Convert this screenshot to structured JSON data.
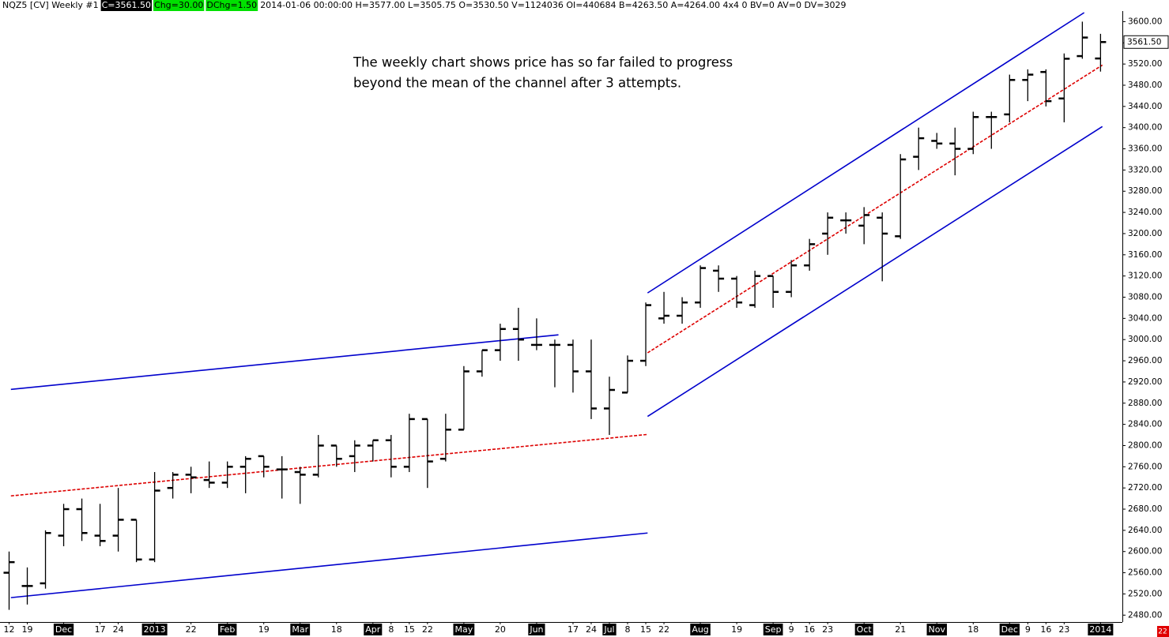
{
  "chart_data": {
    "type": "ohlc",
    "header": {
      "symbol": "NQZ5 [CV]  Weekly  #1",
      "close": "C=3561.50",
      "change": "Chg=30.00",
      "dchange": "DChg=1.50",
      "details": "2014-01-06 00:00:00 H=3577.00 L=3505.75 O=3530.50 V=1124036 OI=440684 B=4263.50 A=4264.00 4x4 0 BV=0 AV=0 DV=3029"
    },
    "annotation": [
      "The weekly chart shows price has so far failed to progress",
      "beyond the mean of the channel after 3 attempts."
    ],
    "last_price_label": {
      "value": 3561.5,
      "label": "3561.50"
    },
    "corner_label": "22",
    "categories": [
      "12",
      "19",
      null,
      "Dec",
      null,
      "17",
      "24",
      null,
      "2013",
      null,
      "22",
      null,
      "Feb",
      null,
      "19",
      null,
      "Mar",
      null,
      "18",
      null,
      "Apr",
      "8",
      "15",
      "22",
      null,
      "May",
      null,
      "20",
      null,
      "Jun",
      null,
      "17",
      "24",
      "Jul",
      "8",
      "15",
      "22",
      null,
      "Aug",
      null,
      "19",
      null,
      "Sep",
      "9",
      "16",
      "23",
      null,
      "Oct",
      null,
      "21",
      null,
      "Nov",
      null,
      "18",
      null,
      "Dec",
      "9",
      "16",
      "23",
      null,
      "2014"
    ],
    "series": [
      {
        "name": "NQZ5",
        "color": "#000000",
        "open": [
          2560,
          2535,
          2540,
          2630,
          2680,
          2630,
          2630,
          2660,
          2585,
          2720,
          2745,
          2735,
          2730,
          2760,
          2780,
          2755,
          2750,
          2745,
          2800,
          2780,
          2800,
          2810,
          2760,
          2850,
          2775,
          2830,
          2940,
          2980,
          3020,
          2990,
          2990,
          2990,
          2940,
          2870,
          2900,
          2960,
          3040,
          3045,
          3070,
          3130,
          3115,
          3065,
          3120,
          3090,
          3140,
          3200,
          3225,
          3215,
          3230,
          3195,
          3345,
          3375,
          3370,
          3360,
          3420,
          3425,
          3490,
          3505,
          3455,
          3535,
          3530.5
        ],
        "high": [
          2600,
          2570,
          2640,
          2690,
          2700,
          2690,
          2720,
          2660,
          2750,
          2750,
          2760,
          2770,
          2770,
          2780,
          2780,
          2780,
          2760,
          2820,
          2800,
          2810,
          2810,
          2820,
          2860,
          2850,
          2860,
          2950,
          2980,
          3030,
          3060,
          3040,
          3000,
          3000,
          3000,
          2930,
          2970,
          3070,
          3090,
          3080,
          3140,
          3140,
          3120,
          3130,
          3120,
          3150,
          3190,
          3240,
          3240,
          3250,
          3240,
          3350,
          3400,
          3390,
          3400,
          3430,
          3430,
          3500,
          3510,
          3510,
          3540,
          3600,
          3577
        ],
        "low": [
          2490,
          2500,
          2530,
          2610,
          2620,
          2610,
          2600,
          2580,
          2580,
          2700,
          2710,
          2720,
          2720,
          2710,
          2740,
          2700,
          2690,
          2740,
          2760,
          2750,
          2770,
          2740,
          2750,
          2720,
          2770,
          2830,
          2930,
          2960,
          2960,
          2980,
          2910,
          2900,
          2850,
          2820,
          2900,
          2950,
          3030,
          3030,
          3060,
          3090,
          3060,
          3060,
          3060,
          3080,
          3130,
          3160,
          3200,
          3180,
          3110,
          3190,
          3320,
          3360,
          3310,
          3350,
          3360,
          3410,
          3450,
          3440,
          3410,
          3530,
          3505.75
        ],
        "close": [
          2580,
          2535,
          2635,
          2680,
          2635,
          2620,
          2660,
          2585,
          2715,
          2745,
          2740,
          2730,
          2760,
          2775,
          2760,
          2755,
          2745,
          2800,
          2775,
          2800,
          2810,
          2760,
          2850,
          2770,
          2830,
          2940,
          2980,
          3020,
          3000,
          2990,
          2990,
          2940,
          2870,
          2905,
          2960,
          3065,
          3045,
          3070,
          3135,
          3115,
          3070,
          3120,
          3090,
          3140,
          3180,
          3230,
          3225,
          3235,
          3200,
          3340,
          3380,
          3370,
          3360,
          3420,
          3420,
          3490,
          3500,
          3450,
          3530,
          3570,
          3561.5
        ]
      }
    ],
    "trendlines": [
      {
        "x": [
          0.1,
          30.2
        ],
        "y": [
          2906,
          3009
        ],
        "color": "#0000cc",
        "dash": false
      },
      {
        "x": [
          0.1,
          35.1
        ],
        "y": [
          2705,
          2821
        ],
        "color": "#dd0000",
        "dash": true
      },
      {
        "x": [
          0.1,
          35.1
        ],
        "y": [
          2513,
          2635
        ],
        "color": "#0000cc",
        "dash": false
      },
      {
        "x": [
          35.1,
          59.1
        ],
        "y": [
          3088,
          3617
        ],
        "color": "#0000cc",
        "dash": false
      },
      {
        "x": [
          35.1,
          60.1
        ],
        "y": [
          2975,
          3518
        ],
        "color": "#dd0000",
        "dash": true
      },
      {
        "x": [
          35.1,
          60.1
        ],
        "y": [
          2855,
          3402
        ],
        "color": "#0000cc",
        "dash": false
      }
    ],
    "xlim": [
      -0.5,
      61.2
    ],
    "ylim": [
      2470,
      3620
    ],
    "yticks": [
      {
        "value": 2480,
        "label": "2480.00"
      },
      {
        "value": 2520,
        "label": "2520.00"
      },
      {
        "value": 2560,
        "label": "2560.00"
      },
      {
        "value": 2600,
        "label": "2600.00"
      },
      {
        "value": 2640,
        "label": "2640.00"
      },
      {
        "value": 2680,
        "label": "2680.00"
      },
      {
        "value": 2720,
        "label": "2720.00"
      },
      {
        "value": 2760,
        "label": "2760.00"
      },
      {
        "value": 2800,
        "label": "2800.00"
      },
      {
        "value": 2840,
        "label": "2840.00"
      },
      {
        "value": 2880,
        "label": "2880.00"
      },
      {
        "value": 2920,
        "label": "2920.00"
      },
      {
        "value": 2960,
        "label": "2960.00"
      },
      {
        "value": 3000,
        "label": "3000.00"
      },
      {
        "value": 3040,
        "label": "3040.00"
      },
      {
        "value": 3080,
        "label": "3080.00"
      },
      {
        "value": 3120,
        "label": "3120.00"
      },
      {
        "value": 3160,
        "label": "3160.00"
      },
      {
        "value": 3200,
        "label": "3200.00"
      },
      {
        "value": 3240,
        "label": "3240.00"
      },
      {
        "value": 3280,
        "label": "3280.00"
      },
      {
        "value": 3320,
        "label": "3320.00"
      },
      {
        "value": 3360,
        "label": "3360.00"
      },
      {
        "value": 3400,
        "label": "3400.00"
      },
      {
        "value": 3440,
        "label": "3440.00"
      },
      {
        "value": 3480,
        "label": "3480.00"
      },
      {
        "value": 3520,
        "label": "3520.00"
      },
      {
        "value": 3560,
        "label": "3560.00"
      },
      {
        "value": 3600,
        "label": "3600.00"
      }
    ]
  }
}
